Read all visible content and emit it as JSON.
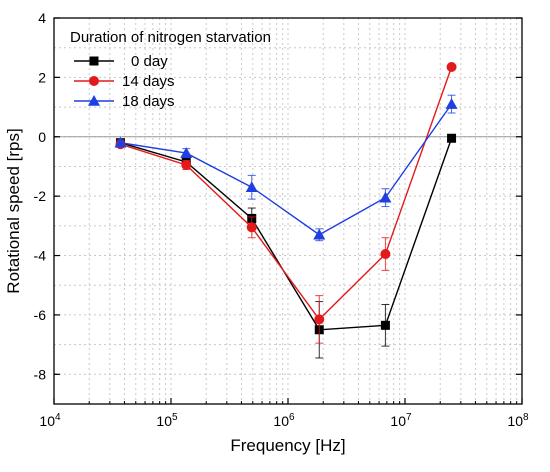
{
  "chart_data": {
    "type": "line",
    "xlabel": "Frequency [Hz]",
    "ylabel": "Rotational speed [rps]",
    "xscale": "log",
    "xlim": [
      10000,
      100000000
    ],
    "ylim": [
      -9,
      4
    ],
    "xticks": [
      {
        "value": 10000,
        "base": "10",
        "exp": "4"
      },
      {
        "value": 100000,
        "base": "10",
        "exp": "5"
      },
      {
        "value": 1000000,
        "base": "10",
        "exp": "6"
      },
      {
        "value": 10000000,
        "base": "10",
        "exp": "7"
      },
      {
        "value": 100000000,
        "base": "10",
        "exp": "8"
      }
    ],
    "yticks": [
      {
        "value": 4,
        "label": "4"
      },
      {
        "value": 2,
        "label": "2"
      },
      {
        "value": 0,
        "label": "0"
      },
      {
        "value": -2,
        "label": "-2"
      },
      {
        "value": -4,
        "label": "-4"
      },
      {
        "value": -6,
        "label": "-6"
      },
      {
        "value": -8,
        "label": "-8"
      }
    ],
    "grid": true,
    "legend": {
      "title": "Duration of nitrogen starvation",
      "placement": "top-left"
    },
    "series": [
      {
        "name": "0 day",
        "color": "#000000",
        "marker": "square",
        "x": [
          37000,
          135000,
          490000,
          1850000,
          6800000,
          25000000
        ],
        "y": [
          -0.2,
          -0.85,
          -2.75,
          -6.5,
          -6.35,
          -0.05
        ],
        "err": [
          0.1,
          0.15,
          0.35,
          0.95,
          0.7,
          0.05
        ]
      },
      {
        "name": "14 days",
        "color": "#e31a1c",
        "marker": "circle",
        "x": [
          37000,
          135000,
          490000,
          1850000,
          6800000,
          25000000
        ],
        "y": [
          -0.25,
          -0.95,
          -3.05,
          -6.15,
          -3.95,
          2.35
        ],
        "err": [
          0.1,
          0.15,
          0.35,
          0.8,
          0.55,
          0.05
        ]
      },
      {
        "name": "18 days",
        "color": "#1f3fe0",
        "marker": "triangle",
        "x": [
          37000,
          135000,
          490000,
          1850000,
          6800000,
          25000000
        ],
        "y": [
          -0.2,
          -0.55,
          -1.7,
          -3.3,
          -2.05,
          1.1
        ],
        "err": [
          0.1,
          0.15,
          0.4,
          0.2,
          0.3,
          0.3
        ]
      }
    ]
  }
}
